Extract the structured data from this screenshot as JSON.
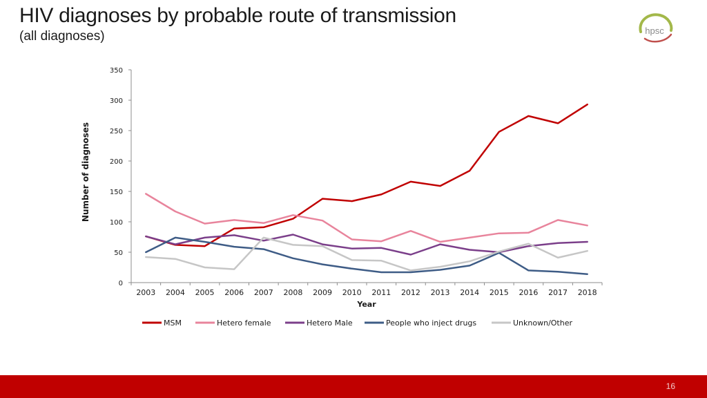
{
  "slide": {
    "title": "HIV diagnoses by probable route of transmission",
    "subtitle": "(all diagnoses)",
    "logo_text": "hpsc",
    "page_number": "16"
  },
  "colors": {
    "footer_bar": "#c00000",
    "logo_ring_green": "#a3b84a",
    "logo_ring_red": "#c0504d"
  },
  "chart_data": {
    "type": "line",
    "xlabel": "Year",
    "ylabel": "Number of diagnoses",
    "ylim": [
      0,
      350
    ],
    "yticks": [
      0,
      50,
      100,
      150,
      200,
      250,
      300,
      350
    ],
    "grid": false,
    "legend_position": "bottom",
    "categories": [
      "2003",
      "2004",
      "2005",
      "2006",
      "2007",
      "2008",
      "2009",
      "2010",
      "2011",
      "2012",
      "2013",
      "2014",
      "2015",
      "2016",
      "2017",
      "2018"
    ],
    "series": [
      {
        "name": "MSM",
        "color": "#c00000",
        "values": [
          76,
          62,
          60,
          89,
          91,
          105,
          138,
          134,
          145,
          166,
          159,
          184,
          248,
          274,
          262,
          293
        ]
      },
      {
        "name": "Hetero female",
        "color": "#e8849c",
        "values": [
          146,
          117,
          97,
          103,
          98,
          111,
          102,
          71,
          68,
          85,
          67,
          74,
          81,
          82,
          103,
          94
        ]
      },
      {
        "name": "Hetero Male",
        "color": "#7b3f8a",
        "values": [
          76,
          63,
          74,
          78,
          69,
          79,
          63,
          56,
          57,
          46,
          63,
          54,
          50,
          60,
          65,
          67
        ]
      },
      {
        "name": "People who inject drugs",
        "color": "#3e5c86",
        "values": [
          50,
          74,
          67,
          59,
          55,
          40,
          30,
          23,
          17,
          17,
          21,
          28,
          49,
          20,
          18,
          14
        ]
      },
      {
        "name": "Unknown/Other",
        "color": "#c6c6c6",
        "values": [
          42,
          39,
          25,
          22,
          74,
          62,
          60,
          37,
          36,
          20,
          26,
          35,
          51,
          64,
          41,
          52
        ]
      }
    ]
  }
}
